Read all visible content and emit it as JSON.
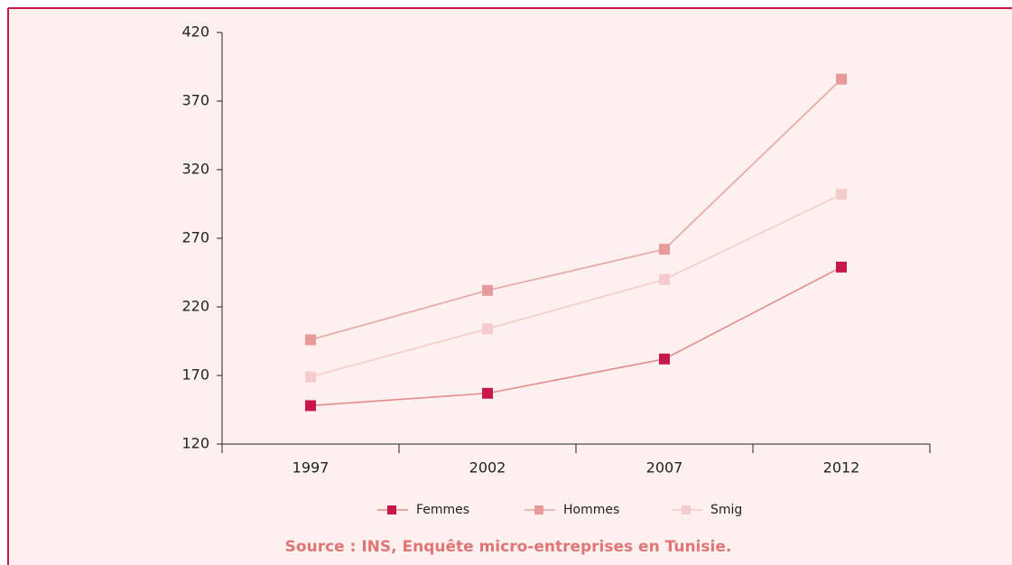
{
  "chart_data": {
    "type": "line",
    "categories": [
      "1997",
      "2002",
      "2007",
      "2012"
    ],
    "series": [
      {
        "name": "Femmes",
        "color": "#c8174a",
        "line_color": "#e38b8b",
        "values": [
          148,
          157,
          182,
          249
        ]
      },
      {
        "name": "Hommes",
        "color": "#e8999b",
        "line_color": "#e8a3a3",
        "values": [
          196,
          232,
          262,
          386
        ]
      },
      {
        "name": "Smig",
        "color": "#f5cbcb",
        "line_color": "#f5caca",
        "values": [
          169,
          204,
          240,
          302
        ]
      }
    ],
    "ylim": [
      120,
      420
    ],
    "yticks": [
      120,
      170,
      220,
      270,
      320,
      370,
      420
    ],
    "legend": "bottom",
    "source": "Source : INS, Enquête micro-entreprises en Tunisie."
  }
}
